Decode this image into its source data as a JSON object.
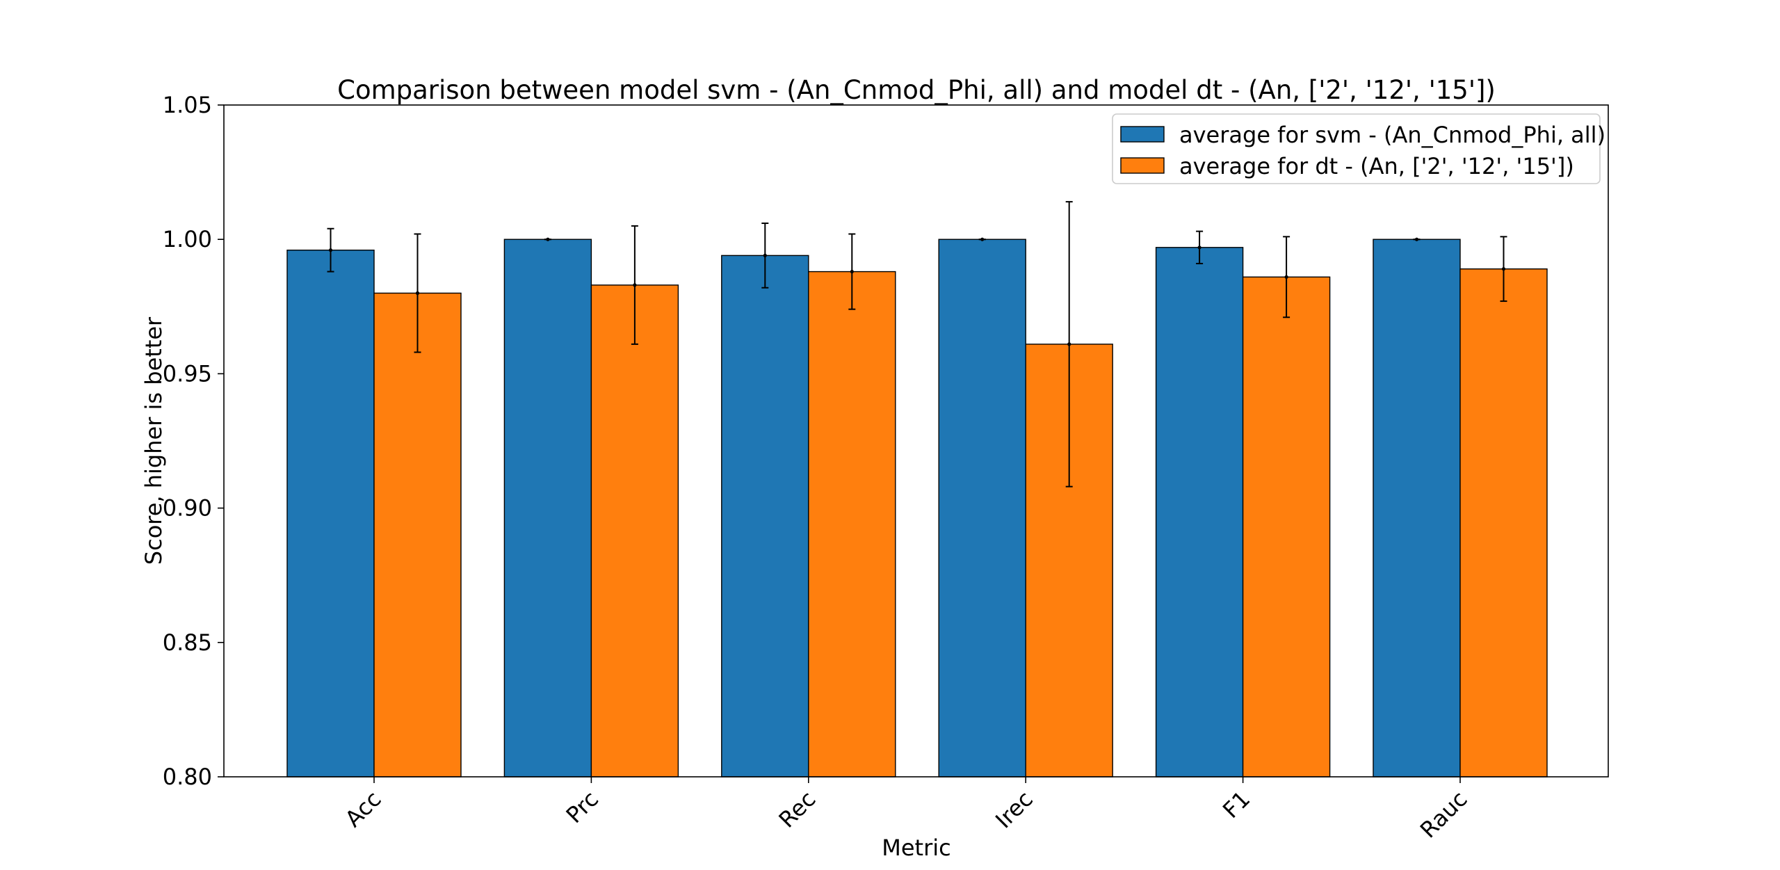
{
  "chart_data": {
    "type": "bar",
    "title": "Comparison between model svm - (An_Cnmod_Phi, all) and model dt - (An, ['2', '12', '15'])",
    "xlabel": "Metric",
    "ylabel": "Score, higher is better",
    "ylim": [
      0.8,
      1.05
    ],
    "yticks": [
      "0.80",
      "0.85",
      "0.90",
      "0.95",
      "1.00",
      "1.05"
    ],
    "categories": [
      "Acc",
      "Prc",
      "Rec",
      "Irec",
      "F1",
      "Rauc"
    ],
    "series": [
      {
        "name": "average for svm - (An_Cnmod_Phi, all)",
        "color": "#1f77b4",
        "values": [
          0.996,
          1.0,
          0.994,
          1.0,
          0.997,
          1.0
        ],
        "errors": [
          0.008,
          0.0,
          0.012,
          0.0,
          0.006,
          0.0
        ]
      },
      {
        "name": "average for dt - (An, ['2', '12', '15'])",
        "color": "#ff7f0e",
        "values": [
          0.98,
          0.983,
          0.988,
          0.961,
          0.986,
          0.989
        ],
        "errors": [
          0.022,
          0.022,
          0.014,
          0.053,
          0.015,
          0.012
        ]
      }
    ],
    "legend_position": "top-right",
    "grid": false
  }
}
